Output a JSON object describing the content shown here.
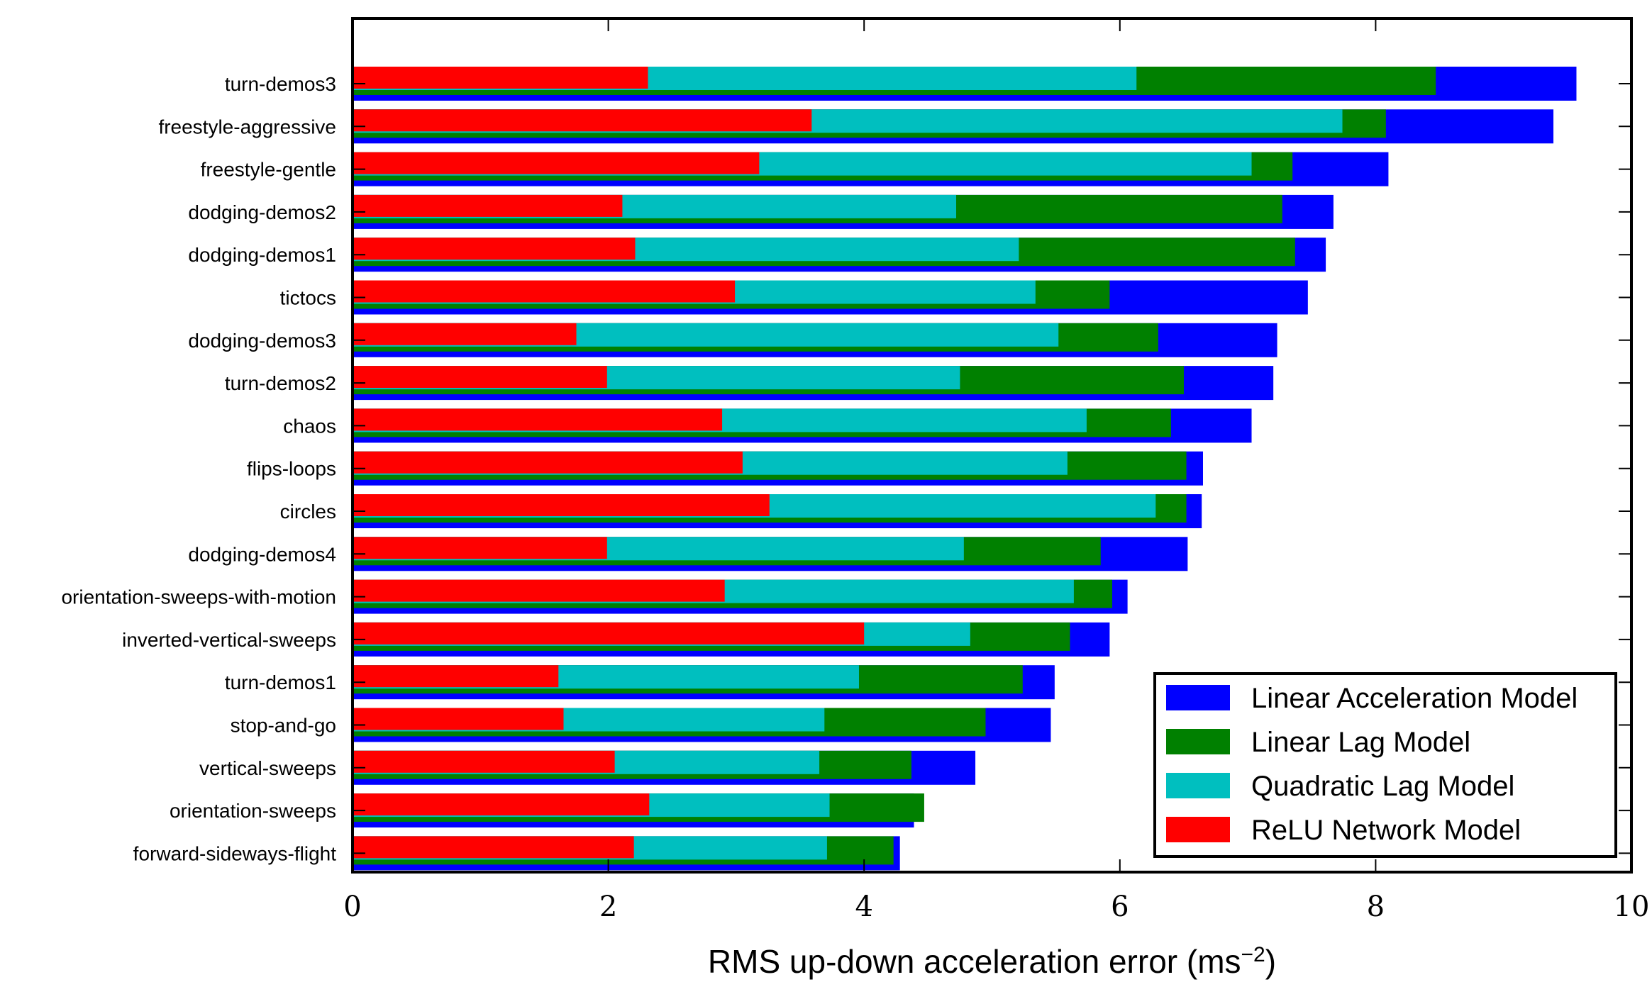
{
  "chart_data": {
    "type": "bar",
    "orientation": "horizontal",
    "title": "",
    "xlabel": "RMS up-down acceleration error (ms",
    "xlabel_sup": "−2",
    "xlabel_close": ")",
    "ylabel": "",
    "xlim": [
      0,
      10
    ],
    "xticks": [
      0,
      2,
      4,
      6,
      8,
      10
    ],
    "grid": false,
    "legend_position": "bottom-right",
    "categories": [
      "turn-demos3",
      "freestyle-aggressive",
      "freestyle-gentle",
      "dodging-demos2",
      "dodging-demos1",
      "tictocs",
      "dodging-demos3",
      "turn-demos2",
      "chaos",
      "flips-loops",
      "circles",
      "dodging-demos4",
      "orientation-sweeps-with-motion",
      "inverted-vertical-sweeps",
      "turn-demos1",
      "stop-and-go",
      "vertical-sweeps",
      "orientation-sweeps",
      "forward-sideways-flight"
    ],
    "series": [
      {
        "name": "Linear Acceleration Model",
        "color": "#0000ff",
        "values": [
          9.57,
          9.39,
          8.1,
          7.67,
          7.61,
          7.47,
          7.23,
          7.2,
          7.03,
          6.65,
          6.64,
          6.53,
          6.06,
          5.92,
          5.49,
          5.46,
          4.87,
          4.39,
          4.28
        ]
      },
      {
        "name": "Linear Lag Model",
        "color": "#008000",
        "values": [
          8.47,
          8.08,
          7.35,
          7.27,
          7.37,
          5.92,
          6.3,
          6.5,
          6.4,
          6.52,
          6.52,
          5.85,
          5.94,
          5.61,
          5.24,
          4.95,
          4.37,
          4.47,
          4.23
        ]
      },
      {
        "name": "Quadratic Lag Model",
        "color": "#00bfbf",
        "values": [
          6.13,
          7.74,
          7.03,
          4.72,
          5.21,
          5.34,
          5.52,
          4.75,
          5.74,
          5.59,
          6.28,
          4.78,
          5.64,
          4.83,
          3.96,
          3.69,
          3.65,
          3.73,
          3.71
        ]
      },
      {
        "name": "ReLU Network Model",
        "color": "#ff0000",
        "values": [
          2.31,
          3.59,
          3.18,
          2.11,
          2.21,
          2.99,
          1.75,
          1.99,
          2.89,
          3.05,
          3.26,
          1.99,
          2.91,
          4.0,
          1.61,
          1.65,
          2.05,
          2.32,
          2.2
        ]
      }
    ]
  }
}
